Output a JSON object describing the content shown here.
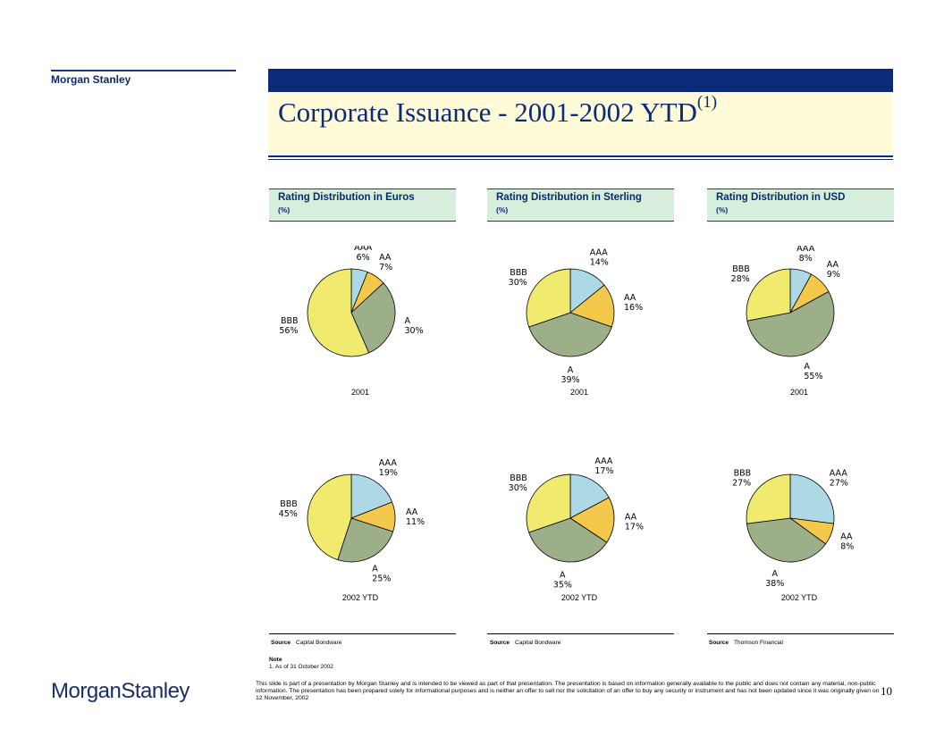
{
  "brand": {
    "top_label": "Morgan Stanley",
    "logo_text": "MorganStanley"
  },
  "title": {
    "main": "Corporate Issuance - 2001-2002 YTD",
    "superscript": "(1)"
  },
  "colors": {
    "AAA": "#add8e6",
    "AA": "#f4c84a",
    "A": "#9caf88",
    "BBB": "#f0ea6e"
  },
  "sections": [
    {
      "title": "Rating Distribution in Euros",
      "unit": "(%)",
      "source_label": "Source",
      "source_value": "Capital Bondware"
    },
    {
      "title": "Rating Distribution in Sterling",
      "unit": "(%)",
      "source_label": "Source",
      "source_value": "Capital Bondware"
    },
    {
      "title": "Rating Distribution in USD",
      "unit": "(%)",
      "source_label": "Source",
      "source_value": "Thomson Financial"
    }
  ],
  "chart_data": [
    {
      "type": "pie",
      "title": "",
      "caption": "2001",
      "region": "Euros",
      "slices": [
        {
          "label": "AAA",
          "value": 6
        },
        {
          "label": "AA",
          "value": 7
        },
        {
          "label": "A",
          "value": 30
        },
        {
          "label": "BBB",
          "value": 56
        }
      ]
    },
    {
      "type": "pie",
      "title": "",
      "caption": "2001",
      "region": "Sterling",
      "slices": [
        {
          "label": "AAA",
          "value": 14
        },
        {
          "label": "AA",
          "value": 16
        },
        {
          "label": "A",
          "value": 39
        },
        {
          "label": "BBB",
          "value": 30
        }
      ]
    },
    {
      "type": "pie",
      "title": "",
      "caption": "2001",
      "region": "USD",
      "slices": [
        {
          "label": "AAA",
          "value": 8
        },
        {
          "label": "AA",
          "value": 9
        },
        {
          "label": "A",
          "value": 55
        },
        {
          "label": "BBB",
          "value": 28
        }
      ]
    },
    {
      "type": "pie",
      "title": "",
      "caption": "2002 YTD",
      "region": "Euros",
      "slices": [
        {
          "label": "AAA",
          "value": 19
        },
        {
          "label": "AA",
          "value": 11
        },
        {
          "label": "A",
          "value": 25
        },
        {
          "label": "BBB",
          "value": 45
        }
      ]
    },
    {
      "type": "pie",
      "title": "",
      "caption": "2002 YTD",
      "region": "Sterling",
      "slices": [
        {
          "label": "AAA",
          "value": 17
        },
        {
          "label": "AA",
          "value": 17
        },
        {
          "label": "A",
          "value": 35
        },
        {
          "label": "BBB",
          "value": 30
        }
      ]
    },
    {
      "type": "pie",
      "title": "",
      "caption": "2002 YTD",
      "region": "USD",
      "slices": [
        {
          "label": "AAA",
          "value": 27
        },
        {
          "label": "AA",
          "value": 8
        },
        {
          "label": "A",
          "value": 38
        },
        {
          "label": "BBB",
          "value": 27
        }
      ]
    }
  ],
  "note": {
    "heading": "Note",
    "line1": "1.  As of 31 October 2002"
  },
  "disclaimer": "This slide is part of a presentation by Morgan Stanley and is intended to be viewed as part of that presentation.  The presentation is based on information generally available to the public and does not contain any material, non-public information.  The presentation has been prepared solely for informational purposes and is neither an offer to sell nor the solicitation of an offer to buy any security or instrument and has not been updated since it was originally given on 12 November, 2002",
  "page_number": "10"
}
